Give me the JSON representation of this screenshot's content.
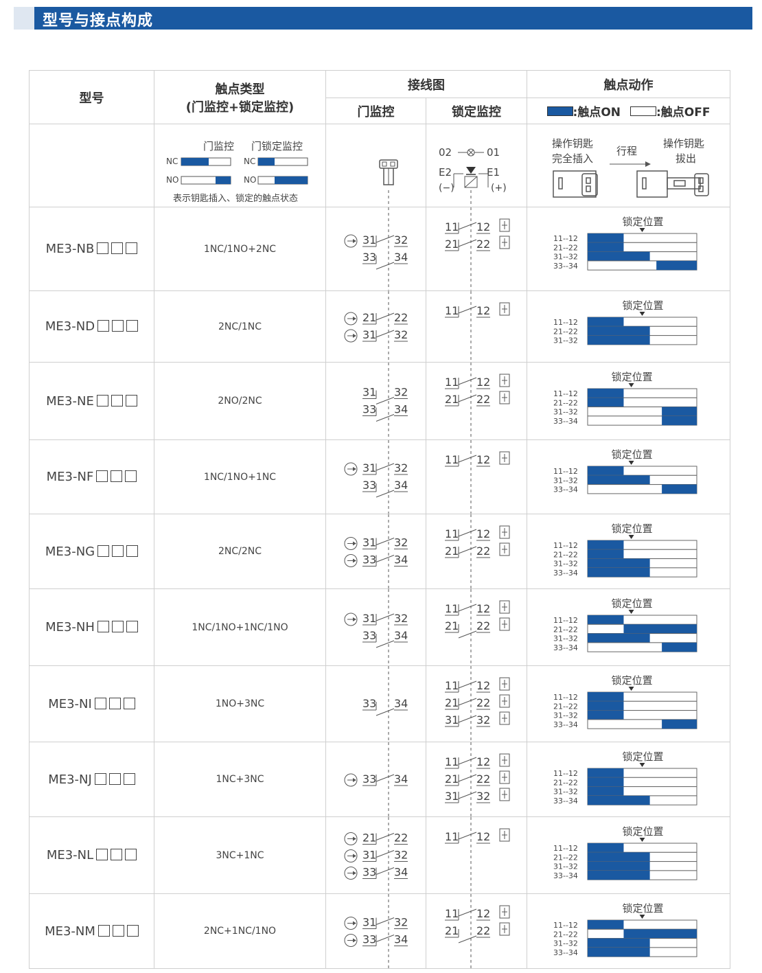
{
  "section": {
    "title": "型号与接点构成"
  },
  "header": {
    "model": "型号",
    "contact_type_1": "触点类型",
    "contact_type_2": "(门监控+锁定监控)",
    "wiring": "接线图",
    "door_monitor": "门监控",
    "lock_monitor": "锁定监控",
    "action": "触点动作",
    "on_label": ":触点ON",
    "off_label": ":触点OFF"
  },
  "legend_row": {
    "door_monitor": "门监控",
    "door_lock_monitor": "门锁定监控",
    "nc": "NC",
    "no": "NO",
    "caption": "表示钥匙插入、锁定的触点状态",
    "led_02": "02",
    "led_01": "01",
    "e2": "E2",
    "e1": "E1",
    "minus": "(−)",
    "plus": "(+)",
    "key_inserted_1": "操作钥匙",
    "key_inserted_2": "完全插入",
    "stroke": "行程",
    "key_removed_1": "操作钥匙",
    "key_removed_2": "拔出"
  },
  "lock_position_label": "锁定位置",
  "colors": {
    "accent": "#1a59a1",
    "border": "#cfcfcf",
    "text": "#333333"
  },
  "rows": [
    {
      "model": "ME3-NB",
      "type": "1NC/1NO+2NC",
      "door": [
        {
          "a": "31",
          "b": "32",
          "nc": true,
          "arrow": true
        },
        {
          "a": "33",
          "b": "34",
          "nc": false,
          "arrow": false
        }
      ],
      "lock": [
        {
          "a": "11",
          "b": "12",
          "nc": true
        },
        {
          "a": "21",
          "b": "22",
          "nc": true
        }
      ],
      "timing": [
        {
          "label": "11--12",
          "on": [
            0,
            0.33
          ]
        },
        {
          "label": "21--22",
          "on": [
            0,
            0.33
          ]
        },
        {
          "label": "31--32",
          "on": [
            0,
            0.57
          ]
        },
        {
          "label": "33--34",
          "on": [
            0.63,
            1
          ]
        }
      ],
      "lock_at": 0.5
    },
    {
      "model": "ME3-ND",
      "type": "2NC/1NC",
      "door": [
        {
          "a": "21",
          "b": "22",
          "nc": true,
          "arrow": true
        },
        {
          "a": "31",
          "b": "32",
          "nc": true,
          "arrow": true
        }
      ],
      "lock": [
        {
          "a": "11",
          "b": "12",
          "nc": true
        }
      ],
      "timing": [
        {
          "label": "11--12",
          "on": [
            0,
            0.33
          ]
        },
        {
          "label": "21--22",
          "on": [
            0,
            0.57
          ]
        },
        {
          "label": "31--32",
          "on": [
            0,
            0.57
          ]
        }
      ],
      "lock_at": 0.5
    },
    {
      "model": "ME3-NE",
      "type": "2NO/2NC",
      "door": [
        {
          "a": "31",
          "b": "32",
          "nc": false,
          "arrow": false
        },
        {
          "a": "33",
          "b": "34",
          "nc": false,
          "arrow": false
        }
      ],
      "lock": [
        {
          "a": "11",
          "b": "12",
          "nc": true
        },
        {
          "a": "21",
          "b": "22",
          "nc": true
        }
      ],
      "timing": [
        {
          "label": "11--12",
          "on": [
            0,
            0.33
          ]
        },
        {
          "label": "21--22",
          "on": [
            0,
            0.33
          ]
        },
        {
          "label": "31--32",
          "on": [
            0.68,
            1
          ]
        },
        {
          "label": "33--34",
          "on": [
            0.68,
            1
          ]
        }
      ],
      "lock_at": 0.4
    },
    {
      "model": "ME3-NF",
      "type": "1NC/1NO+1NC",
      "door": [
        {
          "a": "31",
          "b": "32",
          "nc": true,
          "arrow": true
        },
        {
          "a": "33",
          "b": "34",
          "nc": false,
          "arrow": false
        }
      ],
      "lock": [
        {
          "a": "11",
          "b": "12",
          "nc": true
        }
      ],
      "timing": [
        {
          "label": "11--12",
          "on": [
            0,
            0.33
          ]
        },
        {
          "label": "31--32",
          "on": [
            0,
            0.57
          ]
        },
        {
          "label": "33--34",
          "on": [
            0.68,
            1
          ]
        }
      ],
      "lock_at": 0.4
    },
    {
      "model": "ME3-NG",
      "type": "2NC/2NC",
      "door": [
        {
          "a": "31",
          "b": "32",
          "nc": true,
          "arrow": true
        },
        {
          "a": "33",
          "b": "34",
          "nc": true,
          "arrow": true
        }
      ],
      "lock": [
        {
          "a": "11",
          "b": "12",
          "nc": true
        },
        {
          "a": "21",
          "b": "22",
          "nc": true
        }
      ],
      "timing": [
        {
          "label": "11--12",
          "on": [
            0,
            0.33
          ]
        },
        {
          "label": "21--22",
          "on": [
            0,
            0.33
          ]
        },
        {
          "label": "31--32",
          "on": [
            0,
            0.57
          ]
        },
        {
          "label": "33--34",
          "on": [
            0,
            0.57
          ]
        }
      ],
      "lock_at": 0.4
    },
    {
      "model": "ME3-NH",
      "type": "1NC/1NO+1NC/1NO",
      "door": [
        {
          "a": "31",
          "b": "32",
          "nc": true,
          "arrow": true
        },
        {
          "a": "33",
          "b": "34",
          "nc": false,
          "arrow": false
        }
      ],
      "lock": [
        {
          "a": "11",
          "b": "12",
          "nc": true
        },
        {
          "a": "21",
          "b": "22",
          "nc": false
        }
      ],
      "timing": [
        {
          "label": "11--12",
          "on": [
            0,
            0.33
          ]
        },
        {
          "label": "21--22",
          "on": [
            0.33,
            1
          ]
        },
        {
          "label": "31--32",
          "on": [
            0,
            0.57
          ]
        },
        {
          "label": "33--34",
          "on": [
            0.68,
            1
          ]
        }
      ],
      "lock_at": 0.4
    },
    {
      "model": "ME3-NI",
      "type": "1NO+3NC",
      "door": [
        {
          "a": "33",
          "b": "34",
          "nc": false,
          "arrow": false
        }
      ],
      "lock": [
        {
          "a": "11",
          "b": "12",
          "nc": true
        },
        {
          "a": "21",
          "b": "22",
          "nc": true
        },
        {
          "a": "31",
          "b": "32",
          "nc": true
        }
      ],
      "timing": [
        {
          "label": "11--12",
          "on": [
            0,
            0.33
          ]
        },
        {
          "label": "21--22",
          "on": [
            0,
            0.33
          ]
        },
        {
          "label": "31--32",
          "on": [
            0,
            0.33
          ]
        },
        {
          "label": "33--34",
          "on": [
            0.68,
            1
          ]
        }
      ],
      "lock_at": 0.4
    },
    {
      "model": "ME3-NJ",
      "type": "1NC+3NC",
      "door": [
        {
          "a": "33",
          "b": "34",
          "nc": true,
          "arrow": true
        }
      ],
      "lock": [
        {
          "a": "11",
          "b": "12",
          "nc": true
        },
        {
          "a": "21",
          "b": "22",
          "nc": true
        },
        {
          "a": "31",
          "b": "32",
          "nc": true
        }
      ],
      "timing": [
        {
          "label": "11--12",
          "on": [
            0,
            0.33
          ]
        },
        {
          "label": "21--22",
          "on": [
            0,
            0.33
          ]
        },
        {
          "label": "31--32",
          "on": [
            0,
            0.33
          ]
        },
        {
          "label": "33--34",
          "on": [
            0,
            0.57
          ]
        }
      ],
      "lock_at": 0.5
    },
    {
      "model": "ME3-NL",
      "type": "3NC+1NC",
      "door": [
        {
          "a": "21",
          "b": "22",
          "nc": true,
          "arrow": true
        },
        {
          "a": "31",
          "b": "32",
          "nc": true,
          "arrow": true
        },
        {
          "a": "33",
          "b": "34",
          "nc": true,
          "arrow": true
        }
      ],
      "lock": [
        {
          "a": "11",
          "b": "12",
          "nc": true
        }
      ],
      "timing": [
        {
          "label": "11--12",
          "on": [
            0,
            0.33
          ]
        },
        {
          "label": "21--22",
          "on": [
            0,
            0.57
          ]
        },
        {
          "label": "31--32",
          "on": [
            0,
            0.57
          ]
        },
        {
          "label": "33--34",
          "on": [
            0,
            0.57
          ]
        }
      ],
      "lock_at": 0.5
    },
    {
      "model": "ME3-NM",
      "type": "2NC+1NC/1NO",
      "door": [
        {
          "a": "31",
          "b": "32",
          "nc": true,
          "arrow": true
        },
        {
          "a": "33",
          "b": "34",
          "nc": true,
          "arrow": true
        }
      ],
      "lock": [
        {
          "a": "11",
          "b": "12",
          "nc": true
        },
        {
          "a": "21",
          "b": "22",
          "nc": false
        }
      ],
      "timing": [
        {
          "label": "11--12",
          "on": [
            0,
            0.33
          ]
        },
        {
          "label": "21--22",
          "on": [
            0.33,
            1
          ]
        },
        {
          "label": "31--32",
          "on": [
            0,
            0.57
          ]
        },
        {
          "label": "33--34",
          "on": [
            0,
            0.57
          ]
        }
      ],
      "lock_at": 0.5
    }
  ]
}
